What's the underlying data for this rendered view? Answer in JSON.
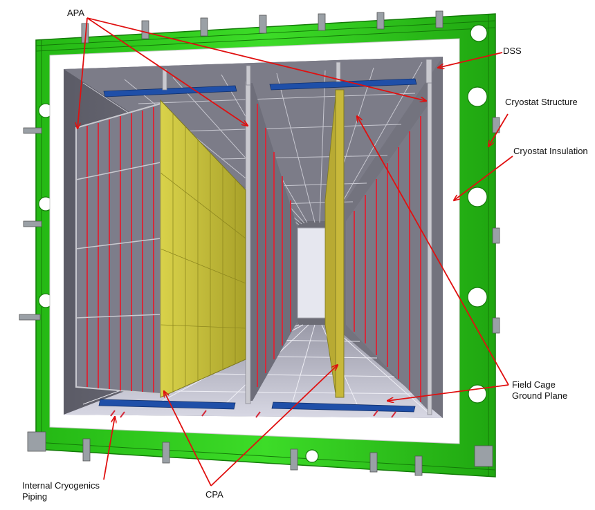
{
  "figure": {
    "labels": {
      "apa": "APA",
      "dss": "DSS",
      "cryostat_structure": "Cryostat Structure",
      "cryostat_insulation": "Cryostat Insulation",
      "field_cage_ground_plane_line1": "Field Cage",
      "field_cage_ground_plane_line2": "Ground Plane",
      "internal_cryogenics_piping_line1": "Internal Cryogenics",
      "internal_cryogenics_piping_line2": "Piping",
      "cpa": "CPA"
    },
    "colors": {
      "cryostat_structure": "#2ecc1a",
      "cryostat_structure_dark": "#1a9b0c",
      "insulation": "#ffffff",
      "interior_wall": "#6f6f78",
      "interior_floor": "#cfd0dc",
      "apa_frame": "#c9c9cf",
      "apa_wires": "#d42a3a",
      "cpa_panel": "#c9c23a",
      "ground_plane": "#1f4fa8",
      "callout_arrow": "#e01010"
    }
  }
}
